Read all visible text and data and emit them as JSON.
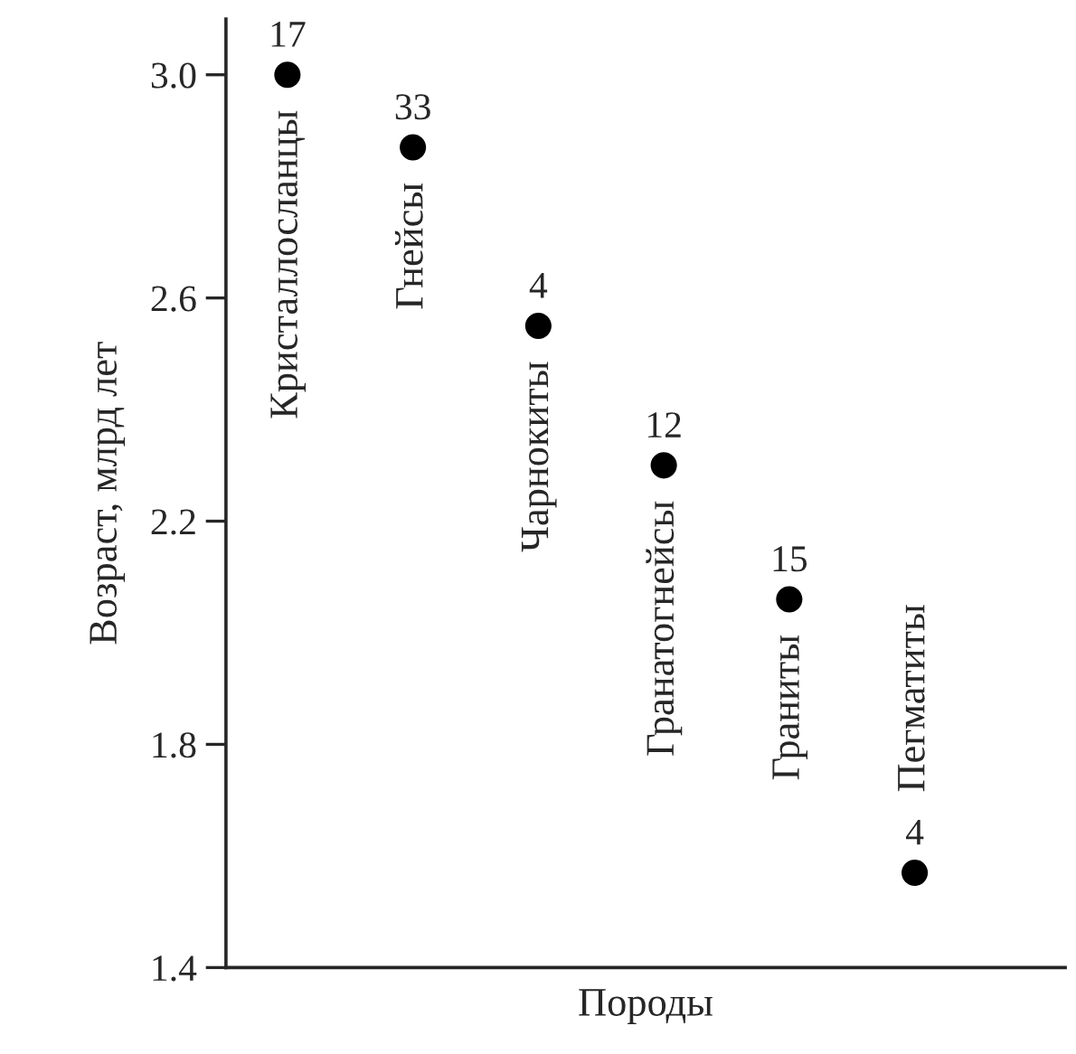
{
  "chart_data": {
    "type": "scatter",
    "xlabel": "Породы",
    "ylabel": "Возраст, млрд лет",
    "categories": [
      "Кристаллосланцы",
      "Гнейсы",
      "Чарнокиты",
      "Гранатогнейсы",
      "Граниты",
      "Пегматиты"
    ],
    "series": [
      {
        "color": "#000000",
        "values": [
          3.0,
          2.87,
          2.55,
          2.3,
          2.06,
          1.57
        ]
      }
    ],
    "ylim": [
      1.4,
      3.1
    ],
    "yticks": [
      {
        "value": 1.4,
        "label": "1.4"
      },
      {
        "value": 1.8,
        "label": "1.8"
      },
      {
        "value": 2.2,
        "label": "2.2"
      },
      {
        "value": 2.6,
        "label": "2.6"
      },
      {
        "value": 3.0,
        "label": "3.0"
      }
    ],
    "tick_labels": "y",
    "marker": "circle",
    "grid": false,
    "legend": false,
    "annotations": [
      {
        "text": "17",
        "x": "Кристаллосланцы",
        "y": 3.0
      },
      {
        "text": "33",
        "x": "Гнейсы",
        "y": 2.87
      },
      {
        "text": "4",
        "x": "Чарнокиты",
        "y": 2.55
      },
      {
        "text": "12",
        "x": "Гранатогнейсы",
        "y": 2.3
      },
      {
        "text": "15",
        "x": "Граниты",
        "y": 2.06
      },
      {
        "text": "4",
        "x": "Пегматиты",
        "y": 1.57
      }
    ]
  }
}
